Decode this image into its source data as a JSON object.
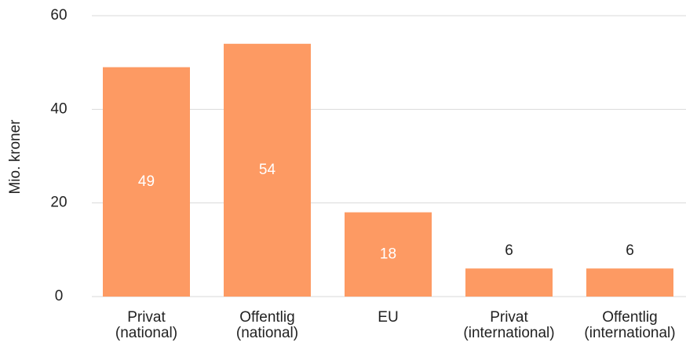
{
  "chart_data": {
    "type": "bar",
    "ylabel": "Mio. kroner",
    "categories": [
      [
        "Privat",
        "(national)"
      ],
      [
        "Offentlig",
        "(national)"
      ],
      [
        "EU"
      ],
      [
        "Privat",
        "(international)"
      ],
      [
        "Offentlig",
        "(international)"
      ]
    ],
    "values": [
      49,
      54,
      18,
      6,
      6
    ],
    "color": "#fd9a63",
    "ylim": [
      0,
      60
    ],
    "yticks": [
      0,
      20,
      40,
      60
    ],
    "grid": true
  }
}
